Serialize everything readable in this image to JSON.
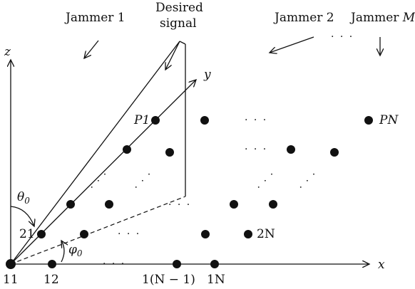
{
  "labels": {
    "jammer1": "Jammer 1",
    "desired_line1": "Desired",
    "desired_line2": "signal",
    "jammer2": "Jammer 2",
    "jammer_m_word": "Jammer",
    "jammer_m_var": "M",
    "ellipsis": "· · ·",
    "z_axis": "z",
    "y_axis": "y",
    "x_axis": "x",
    "theta_sym": "θ",
    "theta_sub": "0",
    "phi_sym": "φ",
    "phi_sub": "0",
    "p1": "P1",
    "pn": "PN",
    "e21": "21",
    "e2n": "2N",
    "e11": "11",
    "e12": "12",
    "e1n1": "1(N − 1)",
    "e1n": "1N"
  },
  "colors": {
    "ink": "#111111",
    "background": "#ffffff"
  }
}
